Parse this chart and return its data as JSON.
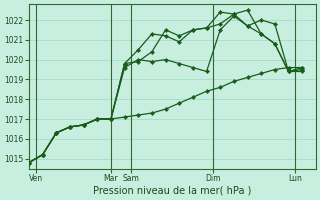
{
  "xlabel": "Pression niveau de la mer( hPa )",
  "bg_color": "#c8eee0",
  "grid_color": "#aaddcc",
  "line_color": "#1a5c1a",
  "vline_color": "#2d6b2d",
  "ylim": [
    1014.5,
    1022.8
  ],
  "yticks": [
    1015,
    1016,
    1017,
    1018,
    1019,
    1020,
    1021,
    1022
  ],
  "xlim": [
    0,
    21
  ],
  "xtick_positions": [
    0.5,
    6.0,
    7.5,
    13.5,
    19.5
  ],
  "xtick_labels": [
    "Ven",
    "Mar",
    "Sam",
    "Dim",
    "Lun"
  ],
  "vlines": [
    0.5,
    6.0,
    7.5,
    13.5,
    19.5
  ],
  "n_points": 21,
  "series": [
    [
      1014.8,
      1015.2,
      1016.3,
      1016.6,
      1016.7,
      1017.0,
      1017.0,
      1017.1,
      1017.2,
      1017.3,
      1017.5,
      1017.8,
      1018.1,
      1018.4,
      1018.6,
      1018.9,
      1019.1,
      1019.3,
      1019.5,
      1019.6,
      1019.6
    ],
    [
      1014.8,
      1015.2,
      1016.3,
      1016.6,
      1016.7,
      1017.0,
      1017.0,
      1019.6,
      1020.0,
      1019.9,
      1020.0,
      1019.8,
      1019.6,
      1019.4,
      1021.5,
      1022.2,
      1021.7,
      1021.3,
      1020.8,
      1019.4,
      1019.6
    ],
    [
      1014.8,
      1015.2,
      1016.3,
      1016.6,
      1016.7,
      1017.0,
      1017.0,
      1019.8,
      1020.5,
      1021.3,
      1021.2,
      1020.9,
      1021.5,
      1021.6,
      1021.8,
      1022.3,
      1022.5,
      1021.3,
      1020.8,
      1019.4,
      1019.5
    ],
    [
      1014.8,
      1015.2,
      1016.3,
      1016.6,
      1016.7,
      1017.0,
      1017.0,
      1019.8,
      1019.9,
      1020.4,
      1021.5,
      1021.2,
      1021.5,
      1021.6,
      1022.4,
      1022.3,
      1021.7,
      1022.0,
      1021.8,
      1019.4,
      1019.4
    ]
  ]
}
